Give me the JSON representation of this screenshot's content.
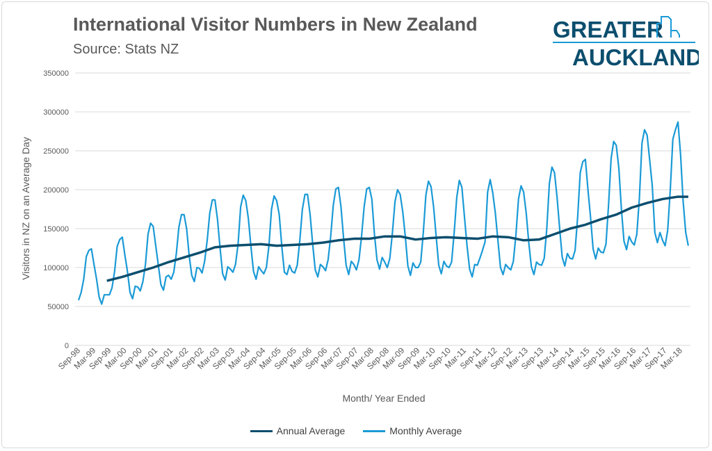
{
  "header": {
    "title": "International Visitor Numbers in New Zealand",
    "subtitle": "Source: Stats NZ"
  },
  "logo": {
    "line1": "GREATER",
    "line2": "AUCKLAND"
  },
  "colors": {
    "annual": "#0C4E6E",
    "monthly": "#1A9AD6",
    "grid": "#d9d9d9",
    "text": "#595959"
  },
  "chart_data": {
    "type": "line",
    "title": "International Visitor Numbers in New Zealand",
    "subtitle": "Source: Stats NZ",
    "xlabel": "Month/ Year Ended",
    "ylabel": "Visitors in NZ on an Average Day",
    "ylim": [
      0,
      350000
    ],
    "yticks": [
      "0",
      "50000",
      "100000",
      "150000",
      "200000",
      "250000",
      "300000",
      "350000"
    ],
    "x_start": "Sep-98",
    "xticks": [
      "Sep-98",
      "Mar-99",
      "Sep-99",
      "Mar-00",
      "Sep-00",
      "Mar-01",
      "Sep-01",
      "Mar-02",
      "Sep-02",
      "Mar-03",
      "Sep-03",
      "Mar-04",
      "Sep-04",
      "Mar-05",
      "Sep-05",
      "Mar-06",
      "Sep-06",
      "Mar-07",
      "Sep-07",
      "Mar-08",
      "Sep-08",
      "Mar-09",
      "Sep-09",
      "Mar-10",
      "Sep-10",
      "Mar-11",
      "Sep-11",
      "Mar-12",
      "Sep-12",
      "Mar-13",
      "Sep-13",
      "Mar-14",
      "Sep-14",
      "Mar-15",
      "Sep-15",
      "Mar-16",
      "Sep-16",
      "Mar-17",
      "Sep-17",
      "Mar-18"
    ],
    "grid": true,
    "legend_position": "bottom",
    "series": [
      {
        "name": "Annual Average",
        "points": [
          [
            "Aug-99",
            83000
          ],
          [
            "Feb-00",
            88000
          ],
          [
            "Aug-00",
            94000
          ],
          [
            "Feb-01",
            100000
          ],
          [
            "Aug-01",
            107000
          ],
          [
            "Feb-02",
            113000
          ],
          [
            "Aug-02",
            119000
          ],
          [
            "Feb-03",
            126000
          ],
          [
            "Aug-03",
            128000
          ],
          [
            "Feb-04",
            129000
          ],
          [
            "Aug-04",
            130000
          ],
          [
            "Feb-05",
            128000
          ],
          [
            "Aug-05",
            129000
          ],
          [
            "Feb-06",
            130000
          ],
          [
            "Aug-06",
            132000
          ],
          [
            "Feb-07",
            135000
          ],
          [
            "Aug-07",
            137000
          ],
          [
            "Feb-08",
            137000
          ],
          [
            "Aug-08",
            140000
          ],
          [
            "Feb-09",
            140000
          ],
          [
            "Aug-09",
            136000
          ],
          [
            "Feb-10",
            138000
          ],
          [
            "Aug-10",
            139000
          ],
          [
            "Feb-11",
            138000
          ],
          [
            "Aug-11",
            137000
          ],
          [
            "Feb-12",
            140000
          ],
          [
            "Aug-12",
            139000
          ],
          [
            "Feb-13",
            135000
          ],
          [
            "Aug-13",
            136000
          ],
          [
            "Feb-14",
            143000
          ],
          [
            "Aug-14",
            150000
          ],
          [
            "Feb-15",
            155000
          ],
          [
            "Aug-15",
            162000
          ],
          [
            "Feb-16",
            168000
          ],
          [
            "Aug-16",
            177000
          ],
          [
            "Feb-17",
            183000
          ],
          [
            "Aug-17",
            188000
          ],
          [
            "Feb-18",
            191000
          ],
          [
            "Jun-18",
            191000
          ]
        ]
      },
      {
        "name": "Monthly Average",
        "values": [
          58000,
          68000,
          85000,
          114000,
          122000,
          124000,
          104000,
          85000,
          62000,
          53000,
          65000,
          65000,
          65000,
          74000,
          95000,
          127000,
          136000,
          139000,
          116000,
          95000,
          68000,
          60000,
          76000,
          75000,
          70000,
          82000,
          104000,
          143000,
          157000,
          153000,
          128000,
          103000,
          78000,
          71000,
          88000,
          90000,
          85000,
          94000,
          118000,
          152000,
          168000,
          168000,
          150000,
          115000,
          90000,
          82000,
          100000,
          99000,
          93000,
          108000,
          135000,
          170000,
          187000,
          187000,
          162000,
          125000,
          92000,
          84000,
          101000,
          98000,
          94000,
          104000,
          130000,
          178000,
          193000,
          186000,
          163000,
          127000,
          95000,
          85000,
          101000,
          96000,
          92000,
          100000,
          128000,
          175000,
          192000,
          186000,
          168000,
          127000,
          94000,
          91000,
          103000,
          95000,
          93000,
          103000,
          135000,
          175000,
          194000,
          194000,
          168000,
          130000,
          97000,
          88000,
          104000,
          101000,
          96000,
          110000,
          140000,
          180000,
          201000,
          203000,
          178000,
          138000,
          103000,
          91000,
          108000,
          104000,
          97000,
          110000,
          140000,
          178000,
          201000,
          203000,
          188000,
          143000,
          110000,
          98000,
          113000,
          107000,
          100000,
          112000,
          145000,
          185000,
          200000,
          194000,
          172000,
          140000,
          102000,
          90000,
          106000,
          100000,
          100000,
          107000,
          145000,
          193000,
          211000,
          204000,
          178000,
          140000,
          103000,
          92000,
          108000,
          102000,
          100000,
          107000,
          145000,
          190000,
          212000,
          203000,
          165000,
          128000,
          98000,
          88000,
          104000,
          103000,
          112000,
          122000,
          133000,
          197000,
          213000,
          196000,
          170000,
          135000,
          100000,
          91000,
          104000,
          100000,
          97000,
          108000,
          142000,
          188000,
          205000,
          197000,
          170000,
          132000,
          101000,
          91000,
          107000,
          104000,
          103000,
          112000,
          150000,
          208000,
          229000,
          222000,
          190000,
          150000,
          113000,
          102000,
          118000,
          112000,
          111000,
          122000,
          165000,
          222000,
          236000,
          239000,
          200000,
          165000,
          124000,
          111000,
          125000,
          120000,
          119000,
          130000,
          180000,
          240000,
          262000,
          257000,
          228000,
          175000,
          134000,
          123000,
          140000,
          133000,
          129000,
          143000,
          190000,
          260000,
          277000,
          270000,
          238000,
          205000,
          145000,
          132000,
          145000,
          135000,
          128000,
          148000,
          200000,
          265000,
          277000,
          287000,
          245000,
          185000,
          145000,
          128000
        ]
      }
    ]
  }
}
